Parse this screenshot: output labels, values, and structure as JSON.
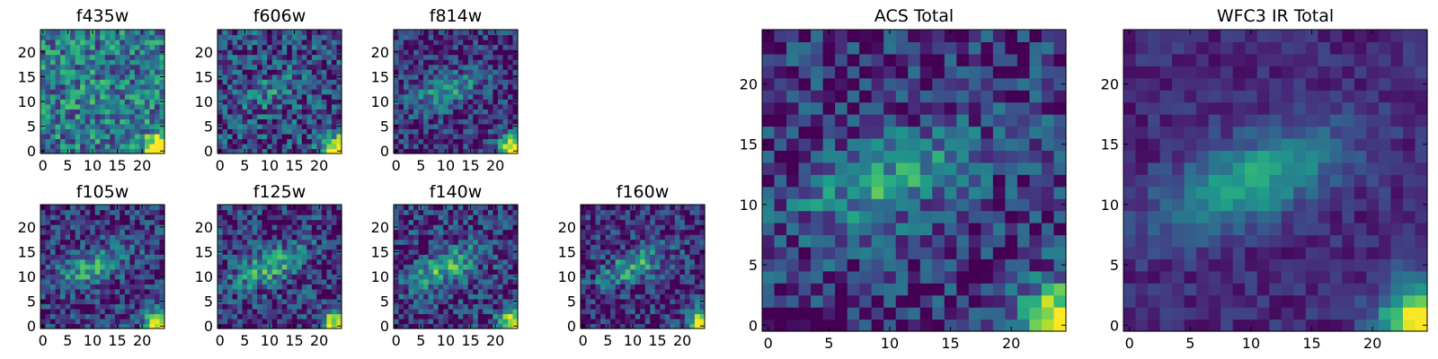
{
  "chart_data": [
    {
      "type": "heatmap",
      "title": "f435w",
      "noise": 0.3,
      "blob": 0.05,
      "floor": 0.4,
      "seed": 11,
      "xlim": [
        0,
        24
      ],
      "ylim": [
        0,
        24
      ],
      "xticks": [
        {
          "v": 0,
          "label": "0"
        },
        {
          "v": 5,
          "label": "5"
        },
        {
          "v": 10,
          "label": "10"
        },
        {
          "v": 15,
          "label": "15"
        },
        {
          "v": 20,
          "label": "20"
        }
      ],
      "yticks": [
        {
          "v": 0,
          "label": "0"
        },
        {
          "v": 5,
          "label": "5"
        },
        {
          "v": 10,
          "label": "10"
        },
        {
          "v": 15,
          "label": "15"
        },
        {
          "v": 20,
          "label": "20"
        }
      ]
    },
    {
      "type": "heatmap",
      "title": "f606w",
      "noise": 0.3,
      "blob": 0.22,
      "floor": 0.22,
      "seed": 23,
      "xlim": [
        0,
        24
      ],
      "ylim": [
        0,
        24
      ],
      "xticks": [
        {
          "v": 0,
          "label": "0"
        },
        {
          "v": 5,
          "label": "5"
        },
        {
          "v": 10,
          "label": "10"
        },
        {
          "v": 15,
          "label": "15"
        },
        {
          "v": 20,
          "label": "20"
        }
      ],
      "yticks": [
        {
          "v": 0,
          "label": "0"
        },
        {
          "v": 5,
          "label": "5"
        },
        {
          "v": 10,
          "label": "10"
        },
        {
          "v": 15,
          "label": "15"
        },
        {
          "v": 20,
          "label": "20"
        }
      ]
    },
    {
      "type": "heatmap",
      "title": "f814w",
      "noise": 0.25,
      "blob": 0.38,
      "floor": 0.14,
      "seed": 37,
      "xlim": [
        0,
        24
      ],
      "ylim": [
        0,
        24
      ],
      "xticks": [
        {
          "v": 0,
          "label": "0"
        },
        {
          "v": 5,
          "label": "5"
        },
        {
          "v": 10,
          "label": "10"
        },
        {
          "v": 15,
          "label": "15"
        },
        {
          "v": 20,
          "label": "20"
        }
      ],
      "yticks": [
        {
          "v": 0,
          "label": "0"
        },
        {
          "v": 5,
          "label": "5"
        },
        {
          "v": 10,
          "label": "10"
        },
        {
          "v": 15,
          "label": "15"
        },
        {
          "v": 20,
          "label": "20"
        }
      ]
    },
    {
      "type": "heatmap",
      "title": "f105w",
      "noise": 0.25,
      "blob": 0.42,
      "floor": 0.16,
      "seed": 41,
      "xlim": [
        0,
        24
      ],
      "ylim": [
        0,
        24
      ],
      "xticks": [
        {
          "v": 0,
          "label": "0"
        },
        {
          "v": 5,
          "label": "5"
        },
        {
          "v": 10,
          "label": "10"
        },
        {
          "v": 15,
          "label": "15"
        },
        {
          "v": 20,
          "label": "20"
        }
      ],
      "yticks": [
        {
          "v": 0,
          "label": "0"
        },
        {
          "v": 5,
          "label": "5"
        },
        {
          "v": 10,
          "label": "10"
        },
        {
          "v": 15,
          "label": "15"
        },
        {
          "v": 20,
          "label": "20"
        }
      ]
    },
    {
      "type": "heatmap",
      "title": "f125w",
      "noise": 0.27,
      "blob": 0.45,
      "floor": 0.17,
      "seed": 53,
      "xlim": [
        0,
        24
      ],
      "ylim": [
        0,
        24
      ],
      "xticks": [
        {
          "v": 0,
          "label": "0"
        },
        {
          "v": 5,
          "label": "5"
        },
        {
          "v": 10,
          "label": "10"
        },
        {
          "v": 15,
          "label": "15"
        },
        {
          "v": 20,
          "label": "20"
        }
      ],
      "yticks": [
        {
          "v": 0,
          "label": "0"
        },
        {
          "v": 5,
          "label": "5"
        },
        {
          "v": 10,
          "label": "10"
        },
        {
          "v": 15,
          "label": "15"
        },
        {
          "v": 20,
          "label": "20"
        }
      ]
    },
    {
      "type": "heatmap",
      "title": "f140w",
      "noise": 0.27,
      "blob": 0.47,
      "floor": 0.17,
      "seed": 67,
      "xlim": [
        0,
        24
      ],
      "ylim": [
        0,
        24
      ],
      "xticks": [
        {
          "v": 0,
          "label": "0"
        },
        {
          "v": 5,
          "label": "5"
        },
        {
          "v": 10,
          "label": "10"
        },
        {
          "v": 15,
          "label": "15"
        },
        {
          "v": 20,
          "label": "20"
        }
      ],
      "yticks": [
        {
          "v": 0,
          "label": "0"
        },
        {
          "v": 5,
          "label": "5"
        },
        {
          "v": 10,
          "label": "10"
        },
        {
          "v": 15,
          "label": "15"
        },
        {
          "v": 20,
          "label": "20"
        }
      ]
    },
    {
      "type": "heatmap",
      "title": "f160w",
      "noise": 0.26,
      "blob": 0.45,
      "floor": 0.12,
      "seed": 79,
      "xlim": [
        0,
        24
      ],
      "ylim": [
        0,
        24
      ],
      "xticks": [
        {
          "v": 0,
          "label": "0"
        },
        {
          "v": 5,
          "label": "5"
        },
        {
          "v": 10,
          "label": "10"
        },
        {
          "v": 15,
          "label": "15"
        },
        {
          "v": 20,
          "label": "20"
        }
      ],
      "yticks": [
        {
          "v": 0,
          "label": "0"
        },
        {
          "v": 5,
          "label": "5"
        },
        {
          "v": 10,
          "label": "10"
        },
        {
          "v": 15,
          "label": "15"
        },
        {
          "v": 20,
          "label": "20"
        }
      ]
    },
    {
      "type": "heatmap",
      "title": "ACS Total",
      "noise": 0.24,
      "blob": 0.4,
      "floor": 0.16,
      "seed": 97,
      "xlim": [
        0,
        24
      ],
      "ylim": [
        0,
        24
      ],
      "xticks": [
        {
          "v": 0,
          "label": "0"
        },
        {
          "v": 5,
          "label": "5"
        },
        {
          "v": 10,
          "label": "10"
        },
        {
          "v": 15,
          "label": "15"
        },
        {
          "v": 20,
          "label": "20"
        }
      ],
      "yticks": [
        {
          "v": 0,
          "label": "0"
        },
        {
          "v": 5,
          "label": "5"
        },
        {
          "v": 10,
          "label": "10"
        },
        {
          "v": 15,
          "label": "15"
        },
        {
          "v": 20,
          "label": "20"
        }
      ]
    },
    {
      "type": "heatmap",
      "title": "WFC3 IR Total",
      "noise": 0.1,
      "blob": 0.48,
      "floor": 0.12,
      "seed": 113,
      "xlim": [
        0,
        24
      ],
      "ylim": [
        0,
        24
      ],
      "xticks": [
        {
          "v": 0,
          "label": "0"
        },
        {
          "v": 5,
          "label": "5"
        },
        {
          "v": 10,
          "label": "10"
        },
        {
          "v": 15,
          "label": "15"
        },
        {
          "v": 20,
          "label": "20"
        }
      ],
      "yticks": [
        {
          "v": 0,
          "label": "0"
        },
        {
          "v": 5,
          "label": "5"
        },
        {
          "v": 10,
          "label": "10"
        },
        {
          "v": 15,
          "label": "15"
        },
        {
          "v": 20,
          "label": "20"
        }
      ]
    }
  ],
  "colors": {
    "colormap": "viridis",
    "stops": [
      "#440154",
      "#482878",
      "#3e4989",
      "#31688e",
      "#26828e",
      "#1f9e89",
      "#35b779",
      "#6ece58",
      "#b5de2b",
      "#fde725"
    ]
  }
}
